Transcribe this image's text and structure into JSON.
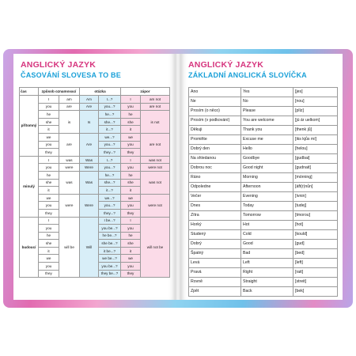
{
  "left_page": {
    "title": "ANGLICKÝ JAZYK",
    "subtitle": "ČASOVÁNÍ SLOVESA TO BE",
    "headers": [
      "čas",
      "způsob oznamovací",
      "otázka",
      "zápor"
    ],
    "sections": [
      {
        "name": "přítomný",
        "rows": [
          [
            "I",
            "am",
            "Am",
            "I...?",
            "I",
            "am not"
          ],
          [
            "you",
            "are",
            "Are",
            "you...?",
            "you",
            "are not"
          ],
          [
            "he",
            "",
            "",
            "he...?",
            "he",
            ""
          ],
          [
            "she",
            "is",
            "Is",
            "she...?",
            "she",
            "is not"
          ],
          [
            "it",
            "",
            "",
            "it...?",
            "it",
            ""
          ],
          [
            "we",
            "",
            "",
            "we...?",
            "we",
            ""
          ],
          [
            "you",
            "are",
            "Are",
            "you...?",
            "you",
            "are not"
          ],
          [
            "they",
            "",
            "",
            "they...?",
            "they",
            ""
          ]
        ]
      },
      {
        "name": "minulý",
        "rows": [
          [
            "I",
            "was",
            "Was",
            "I...?",
            "I",
            "was not"
          ],
          [
            "you",
            "were",
            "Were",
            "you...?",
            "you",
            "were not"
          ],
          [
            "he",
            "",
            "",
            "he...?",
            "he",
            ""
          ],
          [
            "she",
            "was",
            "Was",
            "she...?",
            "she",
            "was not"
          ],
          [
            "it",
            "",
            "",
            "it...?",
            "it",
            ""
          ],
          [
            "we",
            "",
            "",
            "we...?",
            "we",
            ""
          ],
          [
            "you",
            "were",
            "Were",
            "you...?",
            "you",
            "were not"
          ],
          [
            "they",
            "",
            "",
            "they...?",
            "they",
            ""
          ]
        ]
      },
      {
        "name": "budoucí",
        "rows": [
          [
            "I",
            "",
            "",
            "I be...?",
            "I",
            ""
          ],
          [
            "you",
            "",
            "",
            "you be...?",
            "you",
            ""
          ],
          [
            "he",
            "",
            "",
            "he be...?",
            "he",
            ""
          ],
          [
            "she",
            "will be",
            "Will",
            "she be...?",
            "she",
            "will not be"
          ],
          [
            "it",
            "",
            "",
            "it be...?",
            "it",
            ""
          ],
          [
            "we",
            "",
            "",
            "we be...?",
            "we",
            ""
          ],
          [
            "you",
            "",
            "",
            "you be...?",
            "you",
            ""
          ],
          [
            "they",
            "",
            "",
            "they be...?",
            "they",
            ""
          ]
        ]
      }
    ]
  },
  "right_page": {
    "title": "ANGLICKÝ JAZYK",
    "subtitle": "ZÁKLADNÍ ANGLICKÁ SLOVÍČKA",
    "rows": [
      [
        "Ano",
        "Yes",
        "[jes]"
      ],
      [
        "Ne",
        "No",
        "[nou]"
      ],
      [
        "Prosím (o něco)",
        "Please",
        "[plíz]"
      ],
      [
        "Prosím (v podkování)",
        "You are welcome",
        "[jú ár uelkom]"
      ],
      [
        "Děkuji",
        "Thank you",
        "[thenk jů]"
      ],
      [
        "Promiňte",
        "Excuse me",
        "[iks kjůs mí]"
      ],
      [
        "Dobrý den",
        "Hello",
        "[helou]"
      ],
      [
        "Na shledanou",
        "Goodbye",
        "[gudbai]"
      ],
      [
        "Dobrou noc",
        "Good night",
        "[gudnait]"
      ],
      [
        "Ráno",
        "Morning",
        "[mórning]"
      ],
      [
        "Odpoledne",
        "Afternoon",
        "[áft(r)nůn]"
      ],
      [
        "Večer",
        "Evening",
        "[ívnin]"
      ],
      [
        "Dnes",
        "Today",
        "[tudej]"
      ],
      [
        "Zítra",
        "Tomorrow",
        "[tmorou]"
      ],
      [
        "Horký",
        "Hot",
        "[hot]"
      ],
      [
        "Studený",
        "Cold",
        "[kould]"
      ],
      [
        "Dobrý",
        "Good",
        "[gud]"
      ],
      [
        "Špatný",
        "Bad",
        "[bed]"
      ],
      [
        "Levá",
        "Left",
        "[left]"
      ],
      [
        "Pravá",
        "Right",
        "[rait]"
      ],
      [
        "Rovně",
        "Straight",
        "[streit]"
      ],
      [
        "Zpět",
        "Back",
        "[bek]"
      ]
    ]
  },
  "colors": {
    "title_pink": "#d6357e",
    "subtitle_blue": "#1aa0d8",
    "question_blue": "#d8eef8",
    "negative_pink": "#fbdbe8"
  }
}
